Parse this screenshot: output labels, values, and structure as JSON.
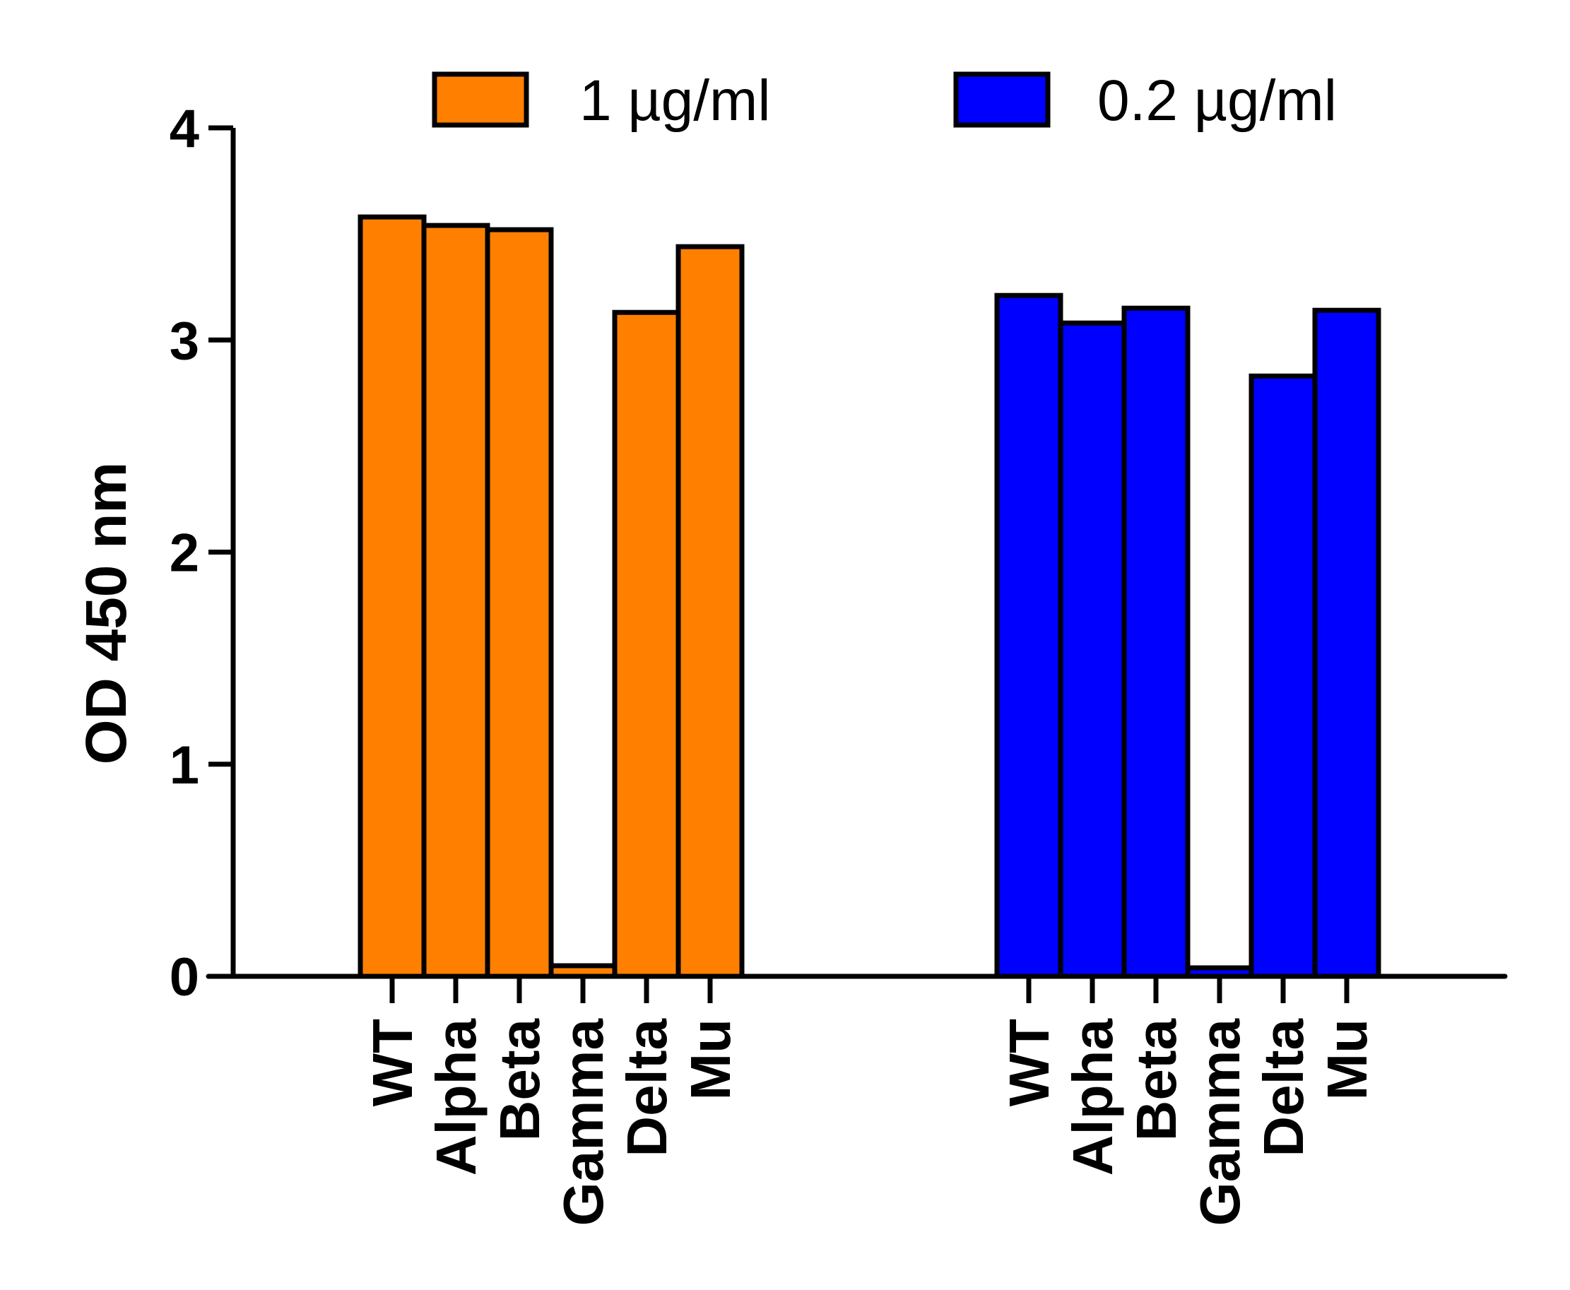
{
  "chart_data": {
    "type": "bar",
    "title": "",
    "xlabel": "",
    "ylabel": "OD 450 nm",
    "ylim": [
      0,
      4
    ],
    "yticks": [
      "0",
      "1",
      "2",
      "3",
      "4"
    ],
    "grid": false,
    "legend_position": "top",
    "categories": [
      "WT",
      "Alpha",
      "Beta",
      "Gamma",
      "Delta",
      "Mu"
    ],
    "series": [
      {
        "name": "1 µg/ml",
        "color": "#FF8000",
        "values": [
          3.58,
          3.54,
          3.52,
          0.05,
          3.13,
          3.44
        ]
      },
      {
        "name": "0.2 µg/ml",
        "color": "#0000FF",
        "values": [
          3.21,
          3.08,
          3.15,
          0.04,
          2.83,
          3.14
        ]
      }
    ]
  }
}
